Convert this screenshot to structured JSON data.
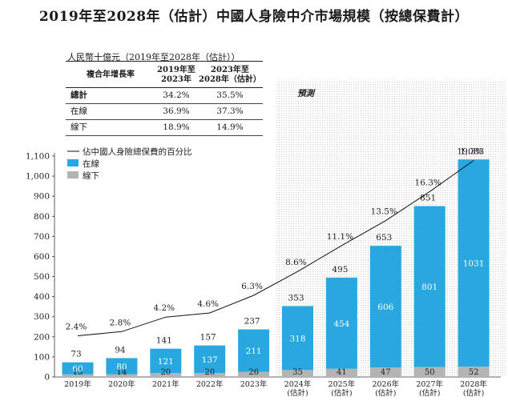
{
  "title": "2019年至2028年（估計）中國人身險中介市場規模（按總保費計）",
  "cagr_table": {
    "unit": "人民幣十億元（2019年至2028年（估計））",
    "header_label": "複合年增長率",
    "columns": [
      "2019年至\n2023年",
      "2023年至\n2028年（估計）"
    ],
    "rows": [
      {
        "label": "總計",
        "values": [
          "34.2%",
          "35.5%"
        ]
      },
      {
        "label": "在線",
        "values": [
          "36.9%",
          "37.3%"
        ]
      },
      {
        "label": "線下",
        "values": [
          "18.9%",
          "14.9%"
        ]
      }
    ]
  },
  "chart_data": {
    "type": "bar",
    "stacked": true,
    "categories": [
      "2019年",
      "2020年",
      "2021年",
      "2022年",
      "2023年",
      "2024年\n(估計)",
      "2025年\n(估計)",
      "2026年\n(估計)",
      "2027年\n(估計)",
      "2028年\n(估計)"
    ],
    "series": [
      {
        "name": "線下",
        "color": "#b4b4b4",
        "values": [
          13,
          14,
          20,
          20,
          26,
          35,
          41,
          47,
          50,
          52
        ]
      },
      {
        "name": "在線",
        "color": "#29a7df",
        "values": [
          60,
          80,
          121,
          137,
          211,
          318,
          454,
          606,
          801,
          1031
        ]
      }
    ],
    "totals": [
      73,
      94,
      141,
      157,
      237,
      353,
      495,
      653,
      851,
      1083
    ],
    "line": {
      "name": "佔中國人身險總保費的百分比",
      "color": "#111111",
      "labels": [
        "2.4%",
        "2.8%",
        "4.2%",
        "4.6%",
        "6.3%",
        "8.6%",
        "11.1%",
        "13.5%",
        "16.3%",
        "19.3%"
      ],
      "values": [
        2.4,
        2.8,
        4.2,
        4.6,
        6.3,
        8.6,
        11.1,
        13.5,
        16.3,
        19.3
      ]
    },
    "yticks": [
      0,
      100,
      200,
      300,
      400,
      500,
      600,
      700,
      800,
      900,
      1000,
      1100
    ],
    "ylim": [
      0,
      1100
    ],
    "forecast_label": "預測",
    "forecast_start_index": 5,
    "legend_position": "top-left"
  }
}
